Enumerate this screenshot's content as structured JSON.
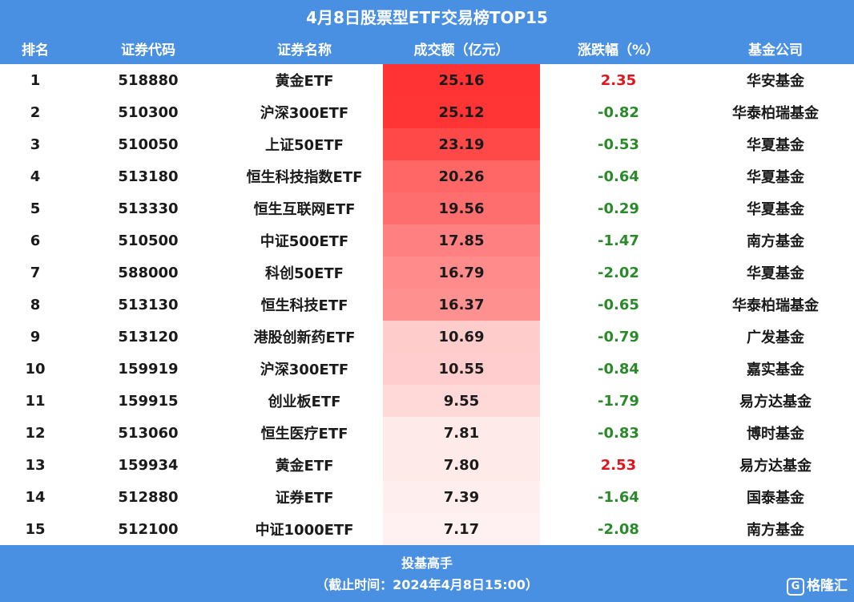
{
  "title": "4月8日股票型ETF交易榜TOP15",
  "columns": [
    "排名",
    "证券代码",
    "证券名称",
    "成交额（亿元）",
    "涨跌幅（%）",
    "基金公司"
  ],
  "colors": {
    "header_bg": "#4a90e2",
    "bar_strong": "#ff3333",
    "up": "#e0141c",
    "down": "#2a8a2a"
  },
  "chart_data": {
    "type": "table",
    "title": "4月8日股票型ETF交易榜TOP15",
    "rows": [
      {
        "rank": "1",
        "code": "518880",
        "name": "黄金ETF",
        "turnover": "25.16",
        "change": "2.35",
        "company": "华安基金"
      },
      {
        "rank": "2",
        "code": "510300",
        "name": "沪深300ETF",
        "turnover": "25.12",
        "change": "-0.82",
        "company": "华泰柏瑞基金"
      },
      {
        "rank": "3",
        "code": "510050",
        "name": "上证50ETF",
        "turnover": "23.19",
        "change": "-0.53",
        "company": "华夏基金"
      },
      {
        "rank": "4",
        "code": "513180",
        "name": "恒生科技指数ETF",
        "turnover": "20.26",
        "change": "-0.64",
        "company": "华夏基金"
      },
      {
        "rank": "5",
        "code": "513330",
        "name": "恒生互联网ETF",
        "turnover": "19.56",
        "change": "-0.29",
        "company": "华夏基金"
      },
      {
        "rank": "6",
        "code": "510500",
        "name": "中证500ETF",
        "turnover": "17.85",
        "change": "-1.47",
        "company": "南方基金"
      },
      {
        "rank": "7",
        "code": "588000",
        "name": "科创50ETF",
        "turnover": "16.79",
        "change": "-2.02",
        "company": "华夏基金"
      },
      {
        "rank": "8",
        "code": "513130",
        "name": "恒生科技ETF",
        "turnover": "16.37",
        "change": "-0.65",
        "company": "华泰柏瑞基金"
      },
      {
        "rank": "9",
        "code": "513120",
        "name": "港股创新药ETF",
        "turnover": "10.69",
        "change": "-0.79",
        "company": "广发基金"
      },
      {
        "rank": "10",
        "code": "159919",
        "name": "沪深300ETF",
        "turnover": "10.55",
        "change": "-0.84",
        "company": "嘉实基金"
      },
      {
        "rank": "11",
        "code": "159915",
        "name": "创业板ETF",
        "turnover": "9.55",
        "change": "-1.79",
        "company": "易方达基金"
      },
      {
        "rank": "12",
        "code": "513060",
        "name": "恒生医疗ETF",
        "turnover": "7.81",
        "change": "-0.83",
        "company": "博时基金"
      },
      {
        "rank": "13",
        "code": "159934",
        "name": "黄金ETF",
        "turnover": "7.80",
        "change": "2.53",
        "company": "易方达基金"
      },
      {
        "rank": "14",
        "code": "512880",
        "name": "证券ETF",
        "turnover": "7.39",
        "change": "-1.64",
        "company": "国泰基金"
      },
      {
        "rank": "15",
        "code": "512100",
        "name": "中证1000ETF",
        "turnover": "7.17",
        "change": "-2.08",
        "company": "南方基金"
      }
    ]
  },
  "footer": {
    "line1": "投基高手",
    "line2": "（截止时间：2024年4月8日15:00）"
  },
  "logo": {
    "mark": "G",
    "text": "格隆汇",
    "icon": "gelonghui-logo-icon"
  }
}
